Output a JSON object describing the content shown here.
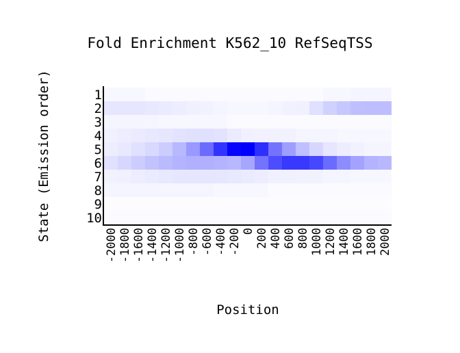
{
  "chart_data": {
    "type": "heatmap",
    "title": "Fold Enrichment K562_10 RefSeqTSS",
    "xlabel": "Position",
    "ylabel": "State (Emission order)",
    "x": [
      -2000,
      -1800,
      -1600,
      -1400,
      -1200,
      -1000,
      -800,
      -600,
      -400,
      -200,
      0,
      200,
      400,
      600,
      800,
      1000,
      1200,
      1400,
      1600,
      1800,
      2000
    ],
    "x_tick_labels": [
      "-2000",
      "-1800",
      "-1600",
      "-1400",
      "-1200",
      "-1000",
      "-800",
      "-600",
      "-400",
      "-200",
      "0",
      "200",
      "400",
      "600",
      "800",
      "1000",
      "1200",
      "1400",
      "1600",
      "1800",
      "2000"
    ],
    "y": [
      1,
      2,
      3,
      4,
      5,
      6,
      7,
      8,
      9,
      10
    ],
    "y_tick_labels": [
      "1",
      "2",
      "3",
      "4",
      "5",
      "6",
      "7",
      "8",
      "9",
      "10"
    ],
    "color_low": "#ffffff",
    "color_high": "#0000ff",
    "value_range": [
      0,
      1
    ],
    "values": [
      [
        0.03,
        0.03,
        0.03,
        0.02,
        0.02,
        0.02,
        0.02,
        0.02,
        0.02,
        0.02,
        0.02,
        0.02,
        0.02,
        0.02,
        0.02,
        0.02,
        0.03,
        0.03,
        0.04,
        0.04,
        0.04
      ],
      [
        0.1,
        0.1,
        0.1,
        0.09,
        0.08,
        0.07,
        0.06,
        0.05,
        0.04,
        0.03,
        0.03,
        0.03,
        0.04,
        0.05,
        0.06,
        0.12,
        0.18,
        0.22,
        0.25,
        0.26,
        0.26
      ],
      [
        0.04,
        0.04,
        0.04,
        0.04,
        0.03,
        0.03,
        0.03,
        0.03,
        0.03,
        0.02,
        0.02,
        0.02,
        0.02,
        0.02,
        0.02,
        0.02,
        0.02,
        0.02,
        0.02,
        0.02,
        0.02
      ],
      [
        0.06,
        0.07,
        0.08,
        0.09,
        0.1,
        0.11,
        0.12,
        0.12,
        0.11,
        0.08,
        0.06,
        0.05,
        0.05,
        0.05,
        0.04,
        0.04,
        0.04,
        0.03,
        0.03,
        0.03,
        0.03
      ],
      [
        0.07,
        0.09,
        0.12,
        0.15,
        0.2,
        0.28,
        0.4,
        0.58,
        0.8,
        0.98,
        1.0,
        0.82,
        0.55,
        0.38,
        0.25,
        0.16,
        0.1,
        0.07,
        0.05,
        0.04,
        0.04
      ],
      [
        0.12,
        0.16,
        0.2,
        0.24,
        0.27,
        0.3,
        0.31,
        0.31,
        0.3,
        0.28,
        0.35,
        0.55,
        0.7,
        0.78,
        0.78,
        0.72,
        0.58,
        0.45,
        0.36,
        0.3,
        0.28
      ],
      [
        0.05,
        0.06,
        0.07,
        0.08,
        0.09,
        0.1,
        0.1,
        0.1,
        0.1,
        0.09,
        0.08,
        0.07,
        0.06,
        0.06,
        0.05,
        0.05,
        0.04,
        0.04,
        0.03,
        0.03,
        0.03
      ],
      [
        0.04,
        0.04,
        0.04,
        0.04,
        0.04,
        0.04,
        0.04,
        0.04,
        0.03,
        0.03,
        0.03,
        0.03,
        0.02,
        0.02,
        0.02,
        0.02,
        0.02,
        0.02,
        0.02,
        0.02,
        0.02
      ],
      [
        0.01,
        0.01,
        0.01,
        0.01,
        0.01,
        0.01,
        0.01,
        0.01,
        0.01,
        0.01,
        0.01,
        0.01,
        0.01,
        0.01,
        0.01,
        0.01,
        0.01,
        0.01,
        0.01,
        0.01,
        0.01
      ],
      [
        0.02,
        0.02,
        0.02,
        0.02,
        0.02,
        0.02,
        0.02,
        0.02,
        0.02,
        0.02,
        0.02,
        0.02,
        0.02,
        0.02,
        0.02,
        0.02,
        0.02,
        0.02,
        0.02,
        0.02,
        0.02
      ]
    ]
  }
}
